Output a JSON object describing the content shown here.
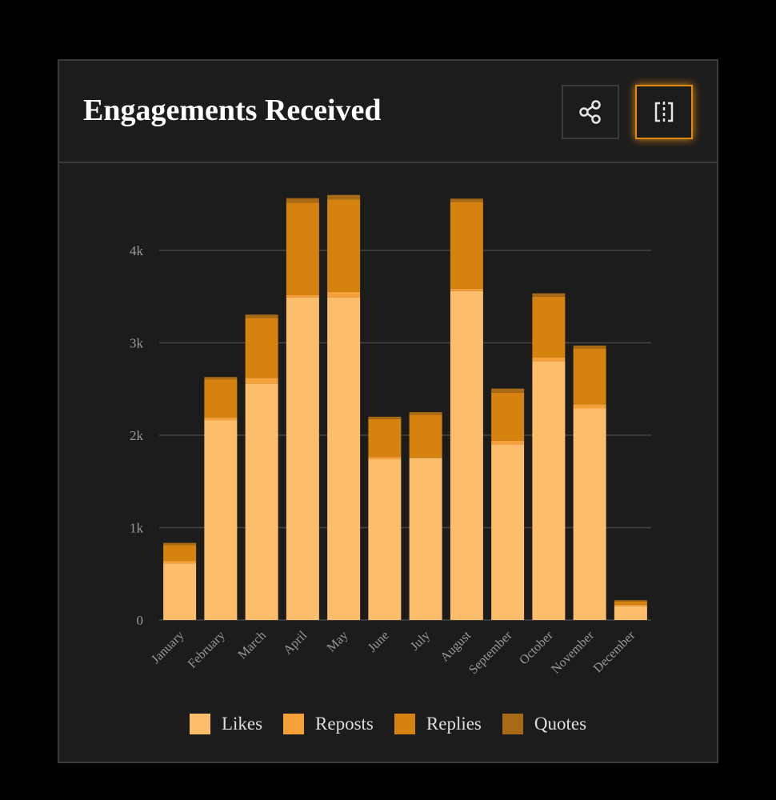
{
  "header": {
    "title": "Engagements Received",
    "share_icon": "share-icon",
    "split_icon": "split-view-icon"
  },
  "chart_data": {
    "type": "bar",
    "stacked": true,
    "title": "Engagements Received",
    "categories": [
      "January",
      "February",
      "March",
      "April",
      "May",
      "June",
      "July",
      "August",
      "September",
      "October",
      "November",
      "December"
    ],
    "series": [
      {
        "name": "Likes",
        "color": "#fdbe6c",
        "values": [
          610,
          2160,
          2560,
          3490,
          3490,
          1740,
          1750,
          3560,
          1900,
          2800,
          2290,
          150
        ]
      },
      {
        "name": "Reposts",
        "color": "#f6a03a",
        "values": [
          30,
          30,
          60,
          25,
          60,
          25,
          10,
          25,
          40,
          40,
          45,
          15
        ]
      },
      {
        "name": "Replies",
        "color": "#d6820f",
        "values": [
          170,
          415,
          650,
          1000,
          1000,
          410,
          460,
          940,
          520,
          660,
          600,
          35
        ]
      },
      {
        "name": "Quotes",
        "color": "#a86a14",
        "values": [
          25,
          25,
          35,
          50,
          50,
          25,
          30,
          35,
          45,
          35,
          35,
          15
        ]
      }
    ],
    "yticks": [
      0,
      1000,
      2000,
      3000,
      4000
    ],
    "ytick_labels": [
      "0",
      "1k",
      "2k",
      "3k",
      "4k"
    ],
    "ylim": [
      0,
      4600
    ],
    "grid": true,
    "legend": "bottom"
  }
}
